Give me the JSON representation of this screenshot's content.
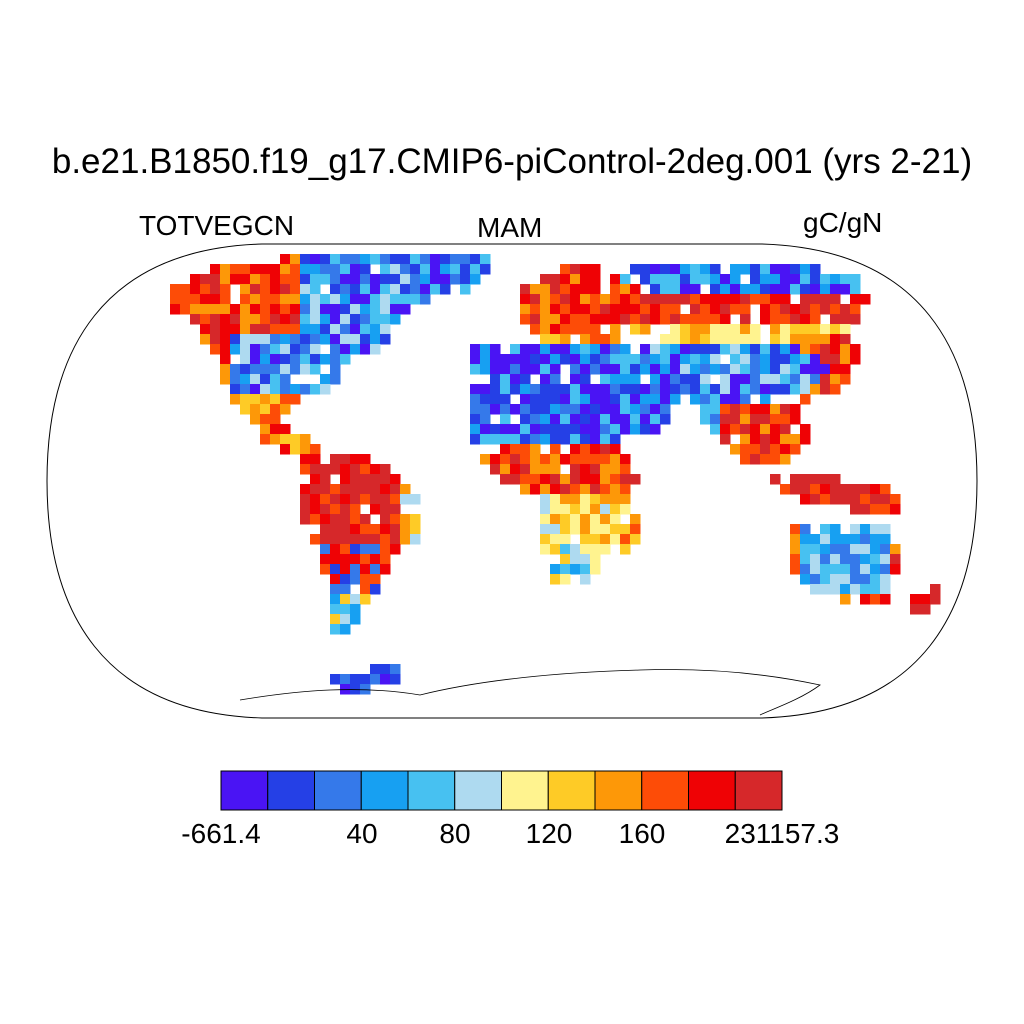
{
  "title": "b.e21.B1850.f19_g17.CMIP6-piControl-2deg.001 (yrs 2-21)",
  "left_label": "TOTVEGCN",
  "center_label": "MAM",
  "right_label": "gC/gN",
  "colorbar": {
    "colors": [
      "#4a14f4",
      "#2540e6",
      "#3579ea",
      "#17a0f2",
      "#47c1f1",
      "#aedaf0",
      "#fff38f",
      "#fecb26",
      "#fd9808",
      "#fd4c07",
      "#ef0205",
      "#d6282a"
    ],
    "labels": [
      "-661.4",
      "40",
      "80",
      "120",
      "160",
      "231157.3"
    ]
  },
  "map": {
    "projection": "robinson"
  }
}
